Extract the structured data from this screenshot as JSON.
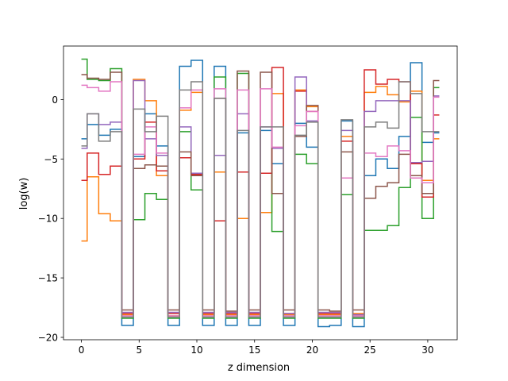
{
  "chart_data": {
    "type": "line",
    "drawstyle": "steps-mid",
    "title": "",
    "xlabel": "z dimension",
    "ylabel": "log(w)",
    "xlim": [
      -1.55,
      32.55
    ],
    "ylim": [
      -20.2,
      4.5
    ],
    "xticks": [
      0,
      5,
      10,
      15,
      20,
      25,
      30
    ],
    "yticks": [
      -20,
      -15,
      -10,
      -5,
      0
    ],
    "grid": false,
    "legend": "none",
    "x": [
      0,
      1,
      2,
      3,
      4,
      5,
      6,
      7,
      8,
      9,
      10,
      11,
      12,
      13,
      14,
      15,
      16,
      17,
      18,
      19,
      20,
      21,
      22,
      23,
      24,
      25,
      26,
      27,
      28,
      29,
      30,
      31
    ],
    "series": [
      {
        "color": "#1f77b4",
        "values": [
          -3.3,
          -2.1,
          -3.0,
          -2.5,
          -19.0,
          -4.8,
          -1.2,
          -3.9,
          -19.0,
          2.8,
          3.3,
          -19.0,
          2.8,
          -19.0,
          -2.8,
          -19.0,
          -2.6,
          -5.4,
          -19.0,
          -2.0,
          -4.0,
          -19.1,
          -19.0,
          -1.8,
          -19.1,
          -6.4,
          -5.0,
          -5.8,
          -3.1,
          3.1,
          -3.6,
          -2.8
        ]
      },
      {
        "color": "#ff7f0e",
        "values": [
          -11.9,
          -6.5,
          -9.6,
          -10.2,
          -18.1,
          1.7,
          -0.1,
          -6.4,
          -18.2,
          -0.9,
          0.6,
          -18.1,
          -6.1,
          -18.1,
          -10.0,
          -18.1,
          -9.5,
          0.5,
          -18.1,
          0.8,
          -0.6,
          -18.1,
          -18.1,
          -3.1,
          -18.0,
          0.6,
          1.1,
          0.4,
          -0.2,
          0.7,
          -6.8,
          -3.3
        ]
      },
      {
        "color": "#2ca02c",
        "values": [
          3.4,
          1.7,
          1.6,
          2.6,
          -18.4,
          -10.1,
          -7.9,
          -8.4,
          -18.4,
          -2.7,
          -7.6,
          -18.4,
          1.9,
          -18.4,
          2.2,
          -18.4,
          -6.2,
          -11.1,
          -18.4,
          -4.6,
          -5.4,
          -18.4,
          -18.4,
          -8.0,
          -18.4,
          -11.0,
          -11.0,
          -10.6,
          -7.4,
          -1.5,
          -10.0,
          1.0
        ]
      },
      {
        "color": "#d62728",
        "values": [
          -6.8,
          -4.5,
          -6.3,
          -5.6,
          -18.0,
          -5.0,
          -1.9,
          -6.0,
          -18.0,
          -4.9,
          -6.3,
          -18.0,
          -10.2,
          -18.0,
          -6.1,
          -18.0,
          -6.2,
          2.7,
          -18.0,
          0.7,
          -1.0,
          -18.0,
          -18.0,
          -3.5,
          -18.1,
          2.5,
          1.3,
          1.7,
          1.5,
          -5.4,
          -8.2,
          -1.3
        ]
      },
      {
        "color": "#9467bd",
        "values": [
          -4.1,
          -1.2,
          -2.1,
          -1.9,
          -17.9,
          1.6,
          -3.3,
          -4.7,
          -17.9,
          -2.3,
          -6.2,
          -17.9,
          -4.7,
          -17.9,
          -1.2,
          -17.9,
          -2.3,
          -4.1,
          -18.0,
          1.9,
          -1.8,
          -17.9,
          -17.9,
          -2.6,
          -18.1,
          -1.0,
          -0.1,
          -0.1,
          -0.1,
          -5.3,
          -5.2,
          0.3
        ]
      },
      {
        "color": "#8c564b",
        "values": [
          2.1,
          1.8,
          1.7,
          2.3,
          -17.7,
          -5.8,
          -5.5,
          -5.6,
          -17.7,
          -4.4,
          -6.4,
          -17.7,
          0.1,
          -17.8,
          2.4,
          -17.7,
          2.3,
          -7.9,
          -17.7,
          -3.1,
          -0.5,
          -17.7,
          -17.8,
          -4.4,
          -17.7,
          -8.3,
          -7.3,
          -7.0,
          -4.6,
          -6.4,
          -7.9,
          1.6
        ]
      },
      {
        "color": "#e377c2",
        "values": [
          1.2,
          1.0,
          0.7,
          1.5,
          -18.2,
          -4.6,
          -2.3,
          -4.5,
          -18.2,
          -0.7,
          0.8,
          -18.2,
          0.9,
          -18.2,
          0.8,
          -18.2,
          0.9,
          -4.0,
          -18.2,
          -2.2,
          -1.0,
          -18.2,
          -18.2,
          -6.6,
          -18.2,
          -4.5,
          -4.8,
          -3.9,
          -4.3,
          -6.6,
          -7.0,
          0.2
        ]
      },
      {
        "color": "#7f7f7f",
        "values": [
          -3.9,
          -1.2,
          -3.5,
          -2.7,
          -18.3,
          -0.8,
          -2.7,
          -1.4,
          -18.3,
          0.8,
          1.5,
          -18.3,
          0.1,
          -18.3,
          -2.6,
          -18.3,
          -2.3,
          -2.3,
          -18.3,
          -3.0,
          -1.9,
          -18.3,
          -18.3,
          -1.7,
          -18.3,
          -2.3,
          -1.9,
          -2.4,
          1.5,
          0.5,
          -2.7,
          -2.7
        ]
      }
    ]
  }
}
